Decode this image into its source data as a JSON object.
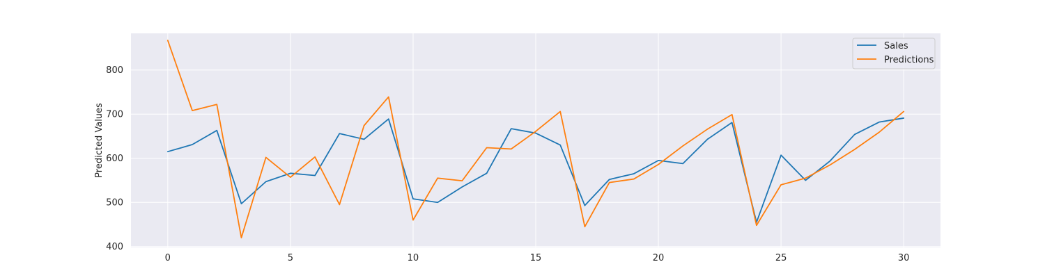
{
  "chart_data": {
    "type": "line",
    "title": "",
    "xlabel": "",
    "ylabel": "Predicted Values",
    "xlim": [
      -1.5,
      31.5
    ],
    "ylim": [
      398,
      883
    ],
    "xticks": [
      0,
      5,
      10,
      15,
      20,
      25,
      30
    ],
    "yticks": [
      400,
      500,
      600,
      700,
      800
    ],
    "grid": true,
    "legend_position": "top-right",
    "x": [
      0,
      1,
      2,
      3,
      4,
      5,
      6,
      7,
      8,
      9,
      10,
      11,
      12,
      13,
      14,
      15,
      16,
      17,
      18,
      19,
      20,
      21,
      22,
      23,
      24,
      25,
      26,
      27,
      28,
      29,
      30
    ],
    "series": [
      {
        "name": "Sales",
        "color": "#1f77b4",
        "values": [
          615,
          631,
          663,
          497,
          547,
          566,
          561,
          656,
          643,
          689,
          508,
          500,
          535,
          566,
          667,
          657,
          630,
          493,
          552,
          565,
          595,
          588,
          643,
          681,
          455,
          607,
          550,
          594,
          654,
          682,
          691
        ]
      },
      {
        "name": "Predictions",
        "color": "#ff7f0e",
        "values": [
          867,
          708,
          722,
          420,
          602,
          557,
          603,
          495,
          674,
          739,
          460,
          555,
          549,
          624,
          621,
          661,
          706,
          445,
          545,
          553,
          586,
          628,
          666,
          699,
          448,
          540,
          555,
          585,
          620,
          659,
          706
        ]
      }
    ]
  }
}
